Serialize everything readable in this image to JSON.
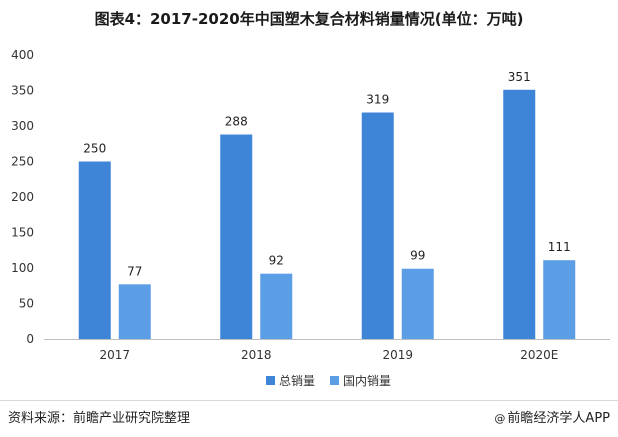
{
  "chart_data": {
    "type": "bar",
    "title": "图表4：2017-2020年中国塑木复合材料销量情况(单位：万吨)",
    "categories": [
      "2017",
      "2018",
      "2019",
      "2020E"
    ],
    "series": [
      {
        "name": "总销量",
        "values": [
          250,
          288,
          319,
          351
        ],
        "color": "#3e85d8"
      },
      {
        "name": "国内销量",
        "values": [
          77,
          92,
          99,
          111
        ],
        "color": "#5b9ee5"
      }
    ],
    "ylim": [
      0,
      400
    ],
    "yticks": [
      0,
      50,
      100,
      150,
      200,
      250,
      300,
      350,
      400
    ],
    "grid": false,
    "legend": "bottom-center"
  },
  "footer": {
    "source": "资料来源：前瞻产业研究院整理",
    "brand_icon": "@",
    "brand": "前瞻经济学人APP"
  }
}
